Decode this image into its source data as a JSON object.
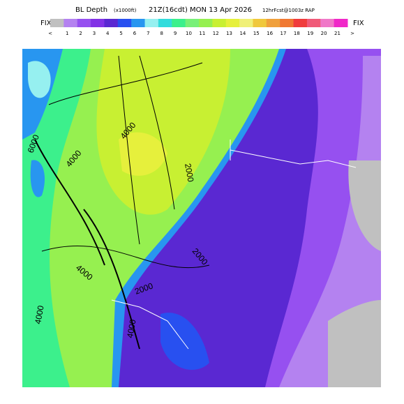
{
  "header": {
    "title": "BL Depth",
    "units": "(x1000ft)",
    "valid": "21Z(16cdt) MON 13 Apr 2026",
    "run": "12hrFcst@1003z RAP"
  },
  "colorbar": {
    "left_label": "FIX",
    "right_label": "FIX",
    "under": "<",
    "over": ">",
    "ticks": [
      "1",
      "2",
      "3",
      "4",
      "5",
      "6",
      "7",
      "8",
      "9",
      "10",
      "11",
      "12",
      "13",
      "14",
      "15",
      "16",
      "17",
      "18",
      "19",
      "20",
      "21"
    ],
    "colors": [
      "#c0c0c0",
      "#b482f0",
      "#9650f0",
      "#8232e6",
      "#5a28d2",
      "#2850f0",
      "#2896f0",
      "#96f0f0",
      "#32dcdc",
      "#3cf08c",
      "#78f078",
      "#96f050",
      "#c8f032",
      "#e6f03c",
      "#f0f078",
      "#f0c83c",
      "#f0a03c",
      "#f07832",
      "#f03c3c",
      "#f05a78",
      "#f078c8",
      "#f028c8"
    ]
  },
  "contour_labels": [
    "6000",
    "4000",
    "4000",
    "2000",
    "2000",
    "2000",
    "4000",
    "4000",
    "4000"
  ]
}
